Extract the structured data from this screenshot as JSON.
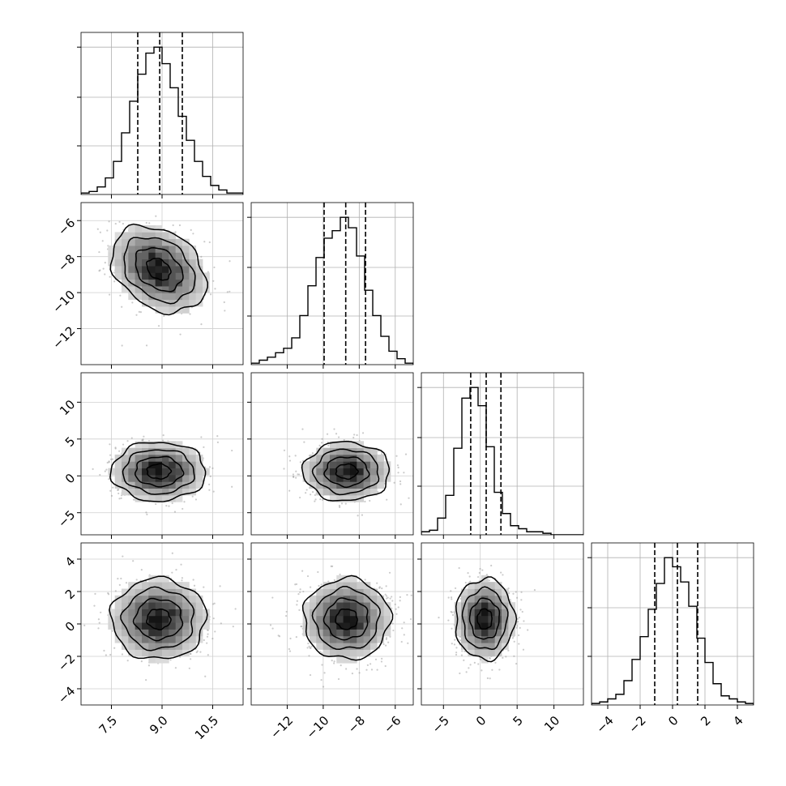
{
  "chart_data": {
    "type": "corner",
    "grid": true,
    "parameters": [
      {
        "range": [
          6.6,
          11.4
        ],
        "ticks": [
          7.5,
          9.0,
          10.5
        ],
        "tick_labels": [
          "7.5",
          "9.0",
          "10.5"
        ],
        "hist": {
          "bin_start": 6.6,
          "bin_width": 0.24,
          "counts": [
            0.01,
            0.02,
            0.05,
            0.11,
            0.22,
            0.41,
            0.62,
            0.8,
            0.94,
            0.98,
            0.87,
            0.71,
            0.52,
            0.36,
            0.22,
            0.12,
            0.06,
            0.03,
            0.01,
            0.01
          ],
          "quantiles": [
            8.28,
            8.93,
            9.6
          ]
        }
      },
      {
        "range": [
          -14,
          -5
        ],
        "ticks": [
          -12,
          -10,
          -8,
          -6
        ],
        "tick_labels": [
          "−12",
          "−10",
          "−8",
          "−6"
        ],
        "hist": {
          "bin_start": -14,
          "bin_width": 0.45,
          "counts": [
            0.01,
            0.03,
            0.05,
            0.08,
            0.11,
            0.18,
            0.33,
            0.53,
            0.72,
            0.85,
            0.9,
            0.99,
            0.92,
            0.73,
            0.5,
            0.33,
            0.19,
            0.09,
            0.04,
            0.01
          ],
          "quantiles": [
            -9.95,
            -8.75,
            -7.65
          ]
        }
      },
      {
        "range": [
          -8,
          14
        ],
        "ticks": [
          -5,
          0,
          5,
          10
        ],
        "tick_labels": [
          "−5",
          "0",
          "5",
          "10"
        ],
        "hist": {
          "bin_start": -8,
          "bin_width": 1.1,
          "counts": [
            0.02,
            0.03,
            0.11,
            0.26,
            0.57,
            0.9,
            0.97,
            0.85,
            0.58,
            0.28,
            0.14,
            0.06,
            0.04,
            0.02,
            0.02,
            0.01,
            0,
            0,
            0,
            0
          ],
          "quantiles": [
            -1.3,
            0.8,
            2.8
          ]
        }
      },
      {
        "range": [
          -5,
          5
        ],
        "ticks": [
          -4,
          -2,
          0,
          2,
          4
        ],
        "tick_labels": [
          "−4",
          "−2",
          "0",
          "2",
          "4"
        ],
        "hist": {
          "bin_start": -5,
          "bin_width": 0.5,
          "counts": [
            0.01,
            0.02,
            0.04,
            0.07,
            0.16,
            0.3,
            0.45,
            0.63,
            0.8,
            0.97,
            0.91,
            0.81,
            0.65,
            0.44,
            0.28,
            0.14,
            0.06,
            0.04,
            0.02,
            0.01
          ],
          "quantiles": [
            -1.1,
            0.3,
            1.55
          ]
        }
      }
    ],
    "y_tick_labels": {
      "1": [
        "−6",
        "−8",
        "−10",
        "−12"
      ],
      "2": [
        "10",
        "5",
        "0",
        "−5"
      ],
      "3": [
        "4",
        "2",
        "0",
        "−2",
        "−4"
      ]
    },
    "pairs": [
      {
        "x": 0,
        "y": 1,
        "mean": [
          8.9,
          -8.7
        ],
        "sd": [
          0.7,
          1.2
        ],
        "rho": -0.3
      },
      {
        "x": 0,
        "y": 2,
        "mean": [
          8.9,
          0.6
        ],
        "sd": [
          0.7,
          2.0
        ],
        "rho": 0.0
      },
      {
        "x": 1,
        "y": 2,
        "mean": [
          -8.7,
          0.6
        ],
        "sd": [
          1.2,
          2.0
        ],
        "rho": 0.0
      },
      {
        "x": 0,
        "y": 3,
        "mean": [
          8.9,
          0.3
        ],
        "sd": [
          0.7,
          1.25
        ],
        "rho": 0.0
      },
      {
        "x": 1,
        "y": 3,
        "mean": [
          -8.7,
          0.3
        ],
        "sd": [
          1.2,
          1.25
        ],
        "rho": 0.0
      },
      {
        "x": 2,
        "y": 3,
        "mean": [
          0.6,
          0.3
        ],
        "sd": [
          2.0,
          1.25
        ],
        "rho": 0.0
      }
    ],
    "contour_levels_sigma": [
      0.5,
      1.0,
      1.5,
      2.0
    ]
  }
}
